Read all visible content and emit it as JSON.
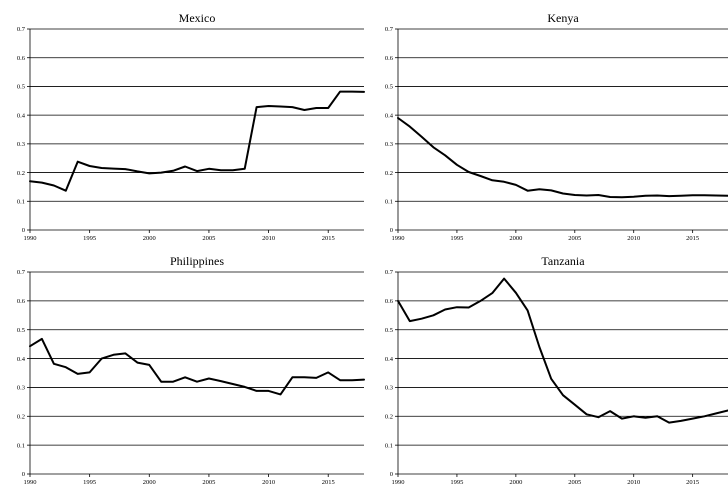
{
  "chart_data": [
    {
      "type": "line",
      "title": "Mexico",
      "xlim": [
        1990,
        2018
      ],
      "ylim": [
        0,
        0.7
      ],
      "xticks": [
        1990,
        1995,
        2000,
        2005,
        2010,
        2015
      ],
      "yticks": [
        0,
        0.1,
        0.2,
        0.3,
        0.4,
        0.5,
        0.6,
        0.7
      ],
      "xtick_labels": [
        "1990",
        "1995",
        "2000",
        "2005",
        "2010",
        "2015"
      ],
      "ytick_labels": [
        "0",
        "0.1",
        "0.2",
        "0.3",
        "0.4",
        "0.5",
        "0.6",
        "0.7"
      ],
      "grid": "horizontal",
      "x": [
        1990,
        1991,
        1992,
        1993,
        1994,
        1995,
        1996,
        1997,
        1998,
        1999,
        2000,
        2001,
        2002,
        2003,
        2004,
        2005,
        2006,
        2007,
        2008,
        2009,
        2010,
        2011,
        2012,
        2013,
        2014,
        2015,
        2016,
        2017,
        2018
      ],
      "y": [
        0.17,
        0.165,
        0.155,
        0.137,
        0.238,
        0.223,
        0.216,
        0.214,
        0.212,
        0.204,
        0.197,
        0.2,
        0.206,
        0.221,
        0.205,
        0.213,
        0.208,
        0.208,
        0.213,
        0.428,
        0.432,
        0.43,
        0.428,
        0.418,
        0.425,
        0.425,
        0.482,
        0.482,
        0.481
      ]
    },
    {
      "type": "line",
      "title": "Kenya",
      "xlim": [
        1990,
        2018
      ],
      "ylim": [
        0,
        0.7
      ],
      "xticks": [
        1990,
        1995,
        2000,
        2005,
        2010,
        2015
      ],
      "yticks": [
        0,
        0.1,
        0.2,
        0.3,
        0.4,
        0.5,
        0.6,
        0.7
      ],
      "xtick_labels": [
        "1990",
        "1995",
        "2000",
        "2005",
        "2010",
        "2015"
      ],
      "ytick_labels": [
        "0",
        "0.1",
        "0.2",
        "0.3",
        "0.4",
        "0.5",
        "0.6",
        "0.7"
      ],
      "grid": "horizontal",
      "x": [
        1990,
        1991,
        1992,
        1993,
        1994,
        1995,
        1996,
        1997,
        1998,
        1999,
        2000,
        2001,
        2002,
        2003,
        2004,
        2005,
        2006,
        2007,
        2008,
        2009,
        2010,
        2011,
        2012,
        2013,
        2014,
        2015,
        2016,
        2017,
        2018
      ],
      "y": [
        0.39,
        0.36,
        0.325,
        0.288,
        0.26,
        0.227,
        0.202,
        0.188,
        0.173,
        0.168,
        0.157,
        0.137,
        0.142,
        0.138,
        0.127,
        0.122,
        0.12,
        0.122,
        0.115,
        0.114,
        0.116,
        0.119,
        0.12,
        0.118,
        0.119,
        0.121,
        0.121,
        0.12,
        0.119
      ]
    },
    {
      "type": "line",
      "title": "Philippines",
      "xlim": [
        1990,
        2018
      ],
      "ylim": [
        0,
        0.7
      ],
      "xticks": [
        1990,
        1995,
        2000,
        2005,
        2010,
        2015
      ],
      "yticks": [
        0,
        0.1,
        0.2,
        0.3,
        0.4,
        0.5,
        0.6,
        0.7
      ],
      "xtick_labels": [
        "1990",
        "1995",
        "2000",
        "2005",
        "2010",
        "2015"
      ],
      "ytick_labels": [
        "0",
        "0.1",
        "0.2",
        "0.3",
        "0.4",
        "0.5",
        "0.6",
        "0.7"
      ],
      "grid": "horizontal",
      "x": [
        1990,
        1991,
        1992,
        1993,
        1994,
        1995,
        1996,
        1997,
        1998,
        1999,
        2000,
        2001,
        2002,
        2003,
        2004,
        2005,
        2006,
        2007,
        2008,
        2009,
        2010,
        2011,
        2012,
        2013,
        2014,
        2015,
        2016,
        2017,
        2018
      ],
      "y": [
        0.443,
        0.468,
        0.382,
        0.37,
        0.347,
        0.352,
        0.4,
        0.413,
        0.418,
        0.386,
        0.378,
        0.32,
        0.32,
        0.335,
        0.32,
        0.331,
        0.322,
        0.312,
        0.302,
        0.288,
        0.288,
        0.276,
        0.335,
        0.335,
        0.333,
        0.352,
        0.325,
        0.325,
        0.327
      ]
    },
    {
      "type": "line",
      "title": "Tanzania",
      "xlim": [
        1990,
        2018
      ],
      "ylim": [
        0,
        0.7
      ],
      "xticks": [
        1990,
        1995,
        2000,
        2005,
        2010,
        2015
      ],
      "yticks": [
        0,
        0.1,
        0.2,
        0.3,
        0.4,
        0.5,
        0.6,
        0.7
      ],
      "xtick_labels": [
        "1990",
        "1995",
        "2000",
        "2005",
        "2010",
        "2015"
      ],
      "ytick_labels": [
        "0",
        "0.1",
        "0.2",
        "0.3",
        "0.4",
        "0.5",
        "0.6",
        "0.7"
      ],
      "grid": "horizontal",
      "x": [
        1990,
        1991,
        1992,
        1993,
        1994,
        1995,
        1996,
        1997,
        1998,
        1999,
        2000,
        2001,
        2002,
        2003,
        2004,
        2005,
        2006,
        2007,
        2008,
        2009,
        2010,
        2011,
        2012,
        2013,
        2014,
        2015,
        2016,
        2017,
        2018
      ],
      "y": [
        0.6,
        0.53,
        0.538,
        0.55,
        0.57,
        0.578,
        0.577,
        0.6,
        0.627,
        0.677,
        0.628,
        0.567,
        0.44,
        0.33,
        0.273,
        0.24,
        0.207,
        0.197,
        0.218,
        0.192,
        0.2,
        0.195,
        0.2,
        0.178,
        0.184,
        0.192,
        0.2,
        0.21,
        0.22
      ]
    }
  ]
}
